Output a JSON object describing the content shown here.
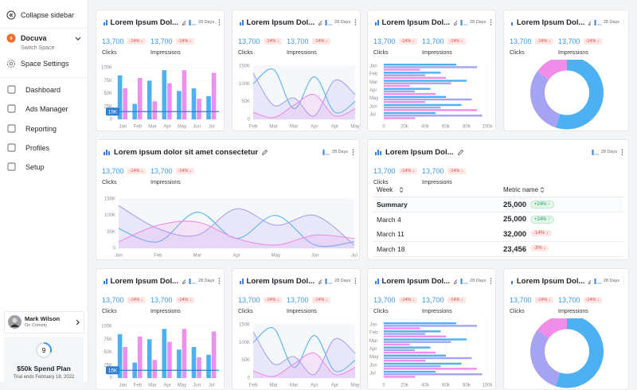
{
  "sidebar": {
    "collapse": "Collapse sidebar",
    "space": {
      "name": "Docuva",
      "sub": "Switch Space"
    },
    "settings": "Space Settings",
    "nav": [
      "Dashboard",
      "Ads Manager",
      "Reporting",
      "Profiles",
      "Setup"
    ],
    "user": {
      "name": "Mark Wilson",
      "org": "On Comety"
    },
    "plan": {
      "count": 9,
      "title": "$50k Spend Plan",
      "note": "Trial ends February 18, 2022"
    }
  },
  "cards": [
    {
      "title": "Lorem Ipsum Dol...",
      "period": "28 Days",
      "metrics": [
        {
          "value": "13,700",
          "change": "-14% ↓",
          "label": "Clicks"
        },
        {
          "value": "13,700",
          "change": "-14% ↓",
          "label": "Impressions"
        }
      ],
      "chart": {
        "type": "bar",
        "categories": [
          "Jan",
          "Feb",
          "Mar",
          "Apr",
          "May",
          "Jun",
          "Jul"
        ],
        "series": [
          {
            "color": "#4cb0f3",
            "values": [
              85000,
              30000,
              75000,
              95000,
              55000,
              60000,
              45000
            ]
          },
          {
            "color": "#ee8ff0",
            "values": [
              60000,
              80000,
              35000,
              70000,
              95000,
              40000,
              90000
            ]
          }
        ],
        "ylim": [
          0,
          100000
        ],
        "yticks": [
          0,
          {
            "value": 25000,
            "label": "25K"
          },
          {
            "value": 50000,
            "label": "50K"
          },
          {
            "value": 75000,
            "label": "75K"
          },
          {
            "value": 100000,
            "label": "100K"
          }
        ],
        "marker": {
          "value": 15000,
          "label": "15K"
        }
      }
    },
    {
      "title": "Lorem Ipsum Dol...",
      "period": "28 Days",
      "metrics": [
        {
          "value": "13,700",
          "change": "-14% ↓",
          "label": "Clicks"
        },
        {
          "value": "13,700",
          "change": "-14% ↓",
          "label": "Impressions"
        }
      ],
      "chart": {
        "type": "line",
        "categories": [
          "Feb",
          "Mar",
          "Mar",
          "Apr",
          "Apr",
          "May"
        ],
        "series": [
          {
            "color": "#52b4f5",
            "values": [
              100000,
              140000,
              30000,
              120000,
              20000,
              50000
            ]
          },
          {
            "color": "#a6a3f3",
            "values": [
              130000,
              40000,
              60000,
              10000,
              110000,
              70000
            ],
            "area": true
          },
          {
            "color": "#ef8de9",
            "values": [
              20000,
              5000,
              40000,
              70000,
              10000,
              30000
            ],
            "area": true
          }
        ],
        "ylim": [
          0,
          150000
        ],
        "yticks": [
          0,
          {
            "value": 50000,
            "label": "50K"
          },
          {
            "value": 100000,
            "label": "100K"
          },
          {
            "value": 150000,
            "label": "150K"
          }
        ]
      }
    },
    {
      "title": "Lorem Ipsum Dol...",
      "period": "28 Days",
      "metrics": [
        {
          "value": "13,700",
          "change": "-14% ↓",
          "label": "Clicks"
        },
        {
          "value": "13,700",
          "change": "-14% ↓",
          "label": "Impressions"
        }
      ],
      "chart": {
        "type": "hbar",
        "categories": [
          "Jan",
          "Feb",
          "Mar",
          "Apr",
          "May",
          "Jun",
          "Jul"
        ],
        "series": [
          {
            "color": "#4cb0f3",
            "values": [
              70000,
              55000,
              80000,
              45000,
              60000,
              75000,
              50000
            ]
          },
          {
            "color": "#a6a3f3",
            "values": [
              90000,
              40000,
              65000,
              30000,
              85000,
              55000,
              95000
            ]
          },
          {
            "color": "#ef8de9",
            "values": [
              35000,
              60000,
              25000,
              50000,
              40000,
              90000,
              30000
            ]
          }
        ],
        "xlim": [
          0,
          100000
        ],
        "xticks": [
          0,
          {
            "value": 20000,
            "label": "20k"
          },
          {
            "value": 40000,
            "label": "40k"
          },
          {
            "value": 60000,
            "label": "60k"
          },
          {
            "value": 80000,
            "label": "80k"
          },
          {
            "value": 100000,
            "label": "100k"
          }
        ]
      }
    },
    {
      "title": "Lorem Ipsum Dol...",
      "period": "28 Days",
      "metrics": [
        {
          "value": "13,700",
          "change": "-14% ↓",
          "label": "Clicks"
        },
        {
          "value": "13,700",
          "change": "-14% ↓",
          "label": "Impressions"
        }
      ],
      "chart": {
        "type": "donut",
        "values": [
          55,
          30,
          15
        ],
        "colors": [
          "#4cb0f3",
          "#a6a3f3",
          "#ef8de9"
        ]
      }
    },
    {
      "title": "Lorem ipsum dolor sit amet consectetur",
      "period": "28 Days",
      "metrics": [
        {
          "value": "13,700",
          "change": "-14% ↓",
          "label": "Clicks"
        },
        {
          "value": "13,700",
          "change": "-14% ↓",
          "label": "Impressions"
        }
      ],
      "chart": {
        "type": "line",
        "categories": [
          "Jan",
          "Feb",
          "Mar",
          "Apr",
          "May",
          "Jun",
          "Jul"
        ],
        "series": [
          {
            "color": "#52b4f5",
            "values": [
              60000,
              20000,
              110000,
              30000,
              100000,
              10000,
              20000
            ]
          },
          {
            "color": "#a6a3f3",
            "values": [
              130000,
              60000,
              40000,
              120000,
              70000,
              100000,
              10000
            ],
            "area": true
          },
          {
            "color": "#ef8de9",
            "values": [
              20000,
              70000,
              80000,
              30000,
              10000,
              40000,
              30000
            ],
            "area": true
          }
        ],
        "ylim": [
          0,
          150000
        ],
        "yticks": [
          0,
          {
            "value": 50000,
            "label": "50K"
          },
          {
            "value": 100000,
            "label": "100K"
          },
          {
            "value": 150000,
            "label": "150K"
          }
        ]
      }
    },
    {
      "title": "Lorem Ipsum Dol...",
      "period": "28 Days",
      "metrics": [
        {
          "value": "13,700",
          "change": "-14% ↓",
          "label": "Clicks"
        },
        {
          "value": "13,700",
          "change": "-14% ↓",
          "label": "Impressions"
        }
      ],
      "chart": {
        "type": "table",
        "columns": [
          "Week",
          "Metric name"
        ],
        "rows": [
          [
            "Summary",
            "25,000",
            "+24% ↑"
          ],
          [
            "March 4",
            "25,000",
            "+24% ↑"
          ],
          [
            "March 11",
            "32,000",
            "-14% ↓"
          ],
          [
            "March 18",
            "23,456",
            "-3% ↓"
          ]
        ]
      }
    },
    {
      "title": "Lorem Ipsum Dol...",
      "period": "28 Days",
      "metrics": [
        {
          "value": "13,700",
          "change": "-14% ↓",
          "label": "Clicks"
        },
        {
          "value": "13,700",
          "change": "-14% ↓",
          "label": "Impressions"
        }
      ],
      "chart": {
        "type": "bar",
        "categories": [
          "Jan",
          "Feb",
          "Mar",
          "Apr",
          "May",
          "Jun",
          "Jul"
        ],
        "series": [
          {
            "color": "#4cb0f3",
            "values": [
              85000,
              30000,
              75000,
              95000,
              55000,
              60000,
              45000
            ]
          },
          {
            "color": "#ee8ff0",
            "values": [
              60000,
              80000,
              35000,
              70000,
              95000,
              40000,
              90000
            ]
          }
        ],
        "ylim": [
          0,
          100000
        ],
        "yticks": [
          0,
          {
            "value": 25000,
            "label": "25K"
          },
          {
            "value": 50000,
            "label": "50K"
          },
          {
            "value": 75000,
            "label": "75K"
          },
          {
            "value": 100000,
            "label": "100K"
          }
        ],
        "marker": {
          "value": 15000,
          "label": "15K"
        }
      }
    },
    {
      "title": "Lorem Ipsum Dol...",
      "period": "28 Days",
      "metrics": [
        {
          "value": "13,700",
          "change": "-14% ↓",
          "label": "Clicks"
        },
        {
          "value": "13,700",
          "change": "-14% ↓",
          "label": "Impressions"
        }
      ],
      "chart": {
        "type": "line",
        "categories": [
          "Feb",
          "Mar",
          "Mar",
          "Apr",
          "Apr",
          "May"
        ],
        "series": [
          {
            "color": "#52b4f5",
            "values": [
              100000,
              140000,
              30000,
              120000,
              20000,
              50000
            ]
          },
          {
            "color": "#a6a3f3",
            "values": [
              130000,
              40000,
              60000,
              10000,
              110000,
              70000
            ],
            "area": true
          },
          {
            "color": "#ef8de9",
            "values": [
              20000,
              5000,
              40000,
              70000,
              10000,
              30000
            ],
            "area": true
          }
        ],
        "ylim": [
          0,
          150000
        ],
        "yticks": [
          0,
          {
            "value": 50000,
            "label": "50K"
          },
          {
            "value": 100000,
            "label": "100K"
          },
          {
            "value": 150000,
            "label": "150K"
          }
        ]
      }
    },
    {
      "title": "Lorem Ipsum Dol...",
      "period": "28 Days",
      "metrics": [
        {
          "value": "13,700",
          "change": "-14% ↓",
          "label": "Clicks"
        },
        {
          "value": "13,700",
          "change": "-14% ↓",
          "label": "Impressions"
        }
      ],
      "chart": {
        "type": "hbar",
        "categories": [
          "Jan",
          "Feb",
          "Mar",
          "Apr",
          "May",
          "Jun",
          "Jul"
        ],
        "series": [
          {
            "color": "#4cb0f3",
            "values": [
              70000,
              55000,
              80000,
              45000,
              60000,
              75000,
              50000
            ]
          },
          {
            "color": "#a6a3f3",
            "values": [
              90000,
              40000,
              65000,
              30000,
              85000,
              55000,
              95000
            ]
          },
          {
            "color": "#ef8de9",
            "values": [
              35000,
              60000,
              25000,
              50000,
              40000,
              90000,
              30000
            ]
          }
        ],
        "xlim": [
          0,
          100000
        ],
        "xticks": [
          0,
          {
            "value": 20000,
            "label": "20k"
          },
          {
            "value": 40000,
            "label": "40k"
          },
          {
            "value": 60000,
            "label": "60k"
          },
          {
            "value": 80000,
            "label": "80k"
          },
          {
            "value": 100000,
            "label": "100k"
          }
        ]
      }
    },
    {
      "title": "Lorem Ipsum Dol...",
      "period": "28 Days",
      "metrics": [
        {
          "value": "13,700",
          "change": "-14% ↓",
          "label": "Clicks"
        },
        {
          "value": "13,700",
          "change": "-14% ↓",
          "label": "Impressions"
        }
      ],
      "chart": {
        "type": "donut",
        "values": [
          55,
          30,
          15
        ],
        "colors": [
          "#4cb0f3",
          "#a6a3f3",
          "#ef8de9"
        ]
      }
    }
  ]
}
